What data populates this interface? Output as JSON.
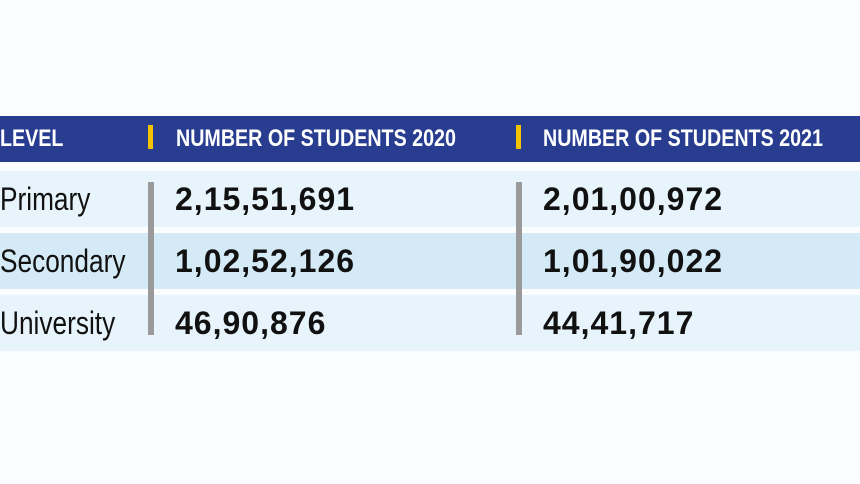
{
  "table": {
    "header": [
      "LEVEL",
      "NUMBER OF STUDENTS 2020",
      "NUMBER OF STUDENTS 2021"
    ],
    "rows": [
      [
        "Primary",
        "2,15,51,691",
        "2,01,00,972"
      ],
      [
        "Secondary",
        "1,02,52,126",
        "1,01,90,022"
      ],
      [
        "University",
        "46,90,876",
        "44,41,717"
      ]
    ]
  }
}
